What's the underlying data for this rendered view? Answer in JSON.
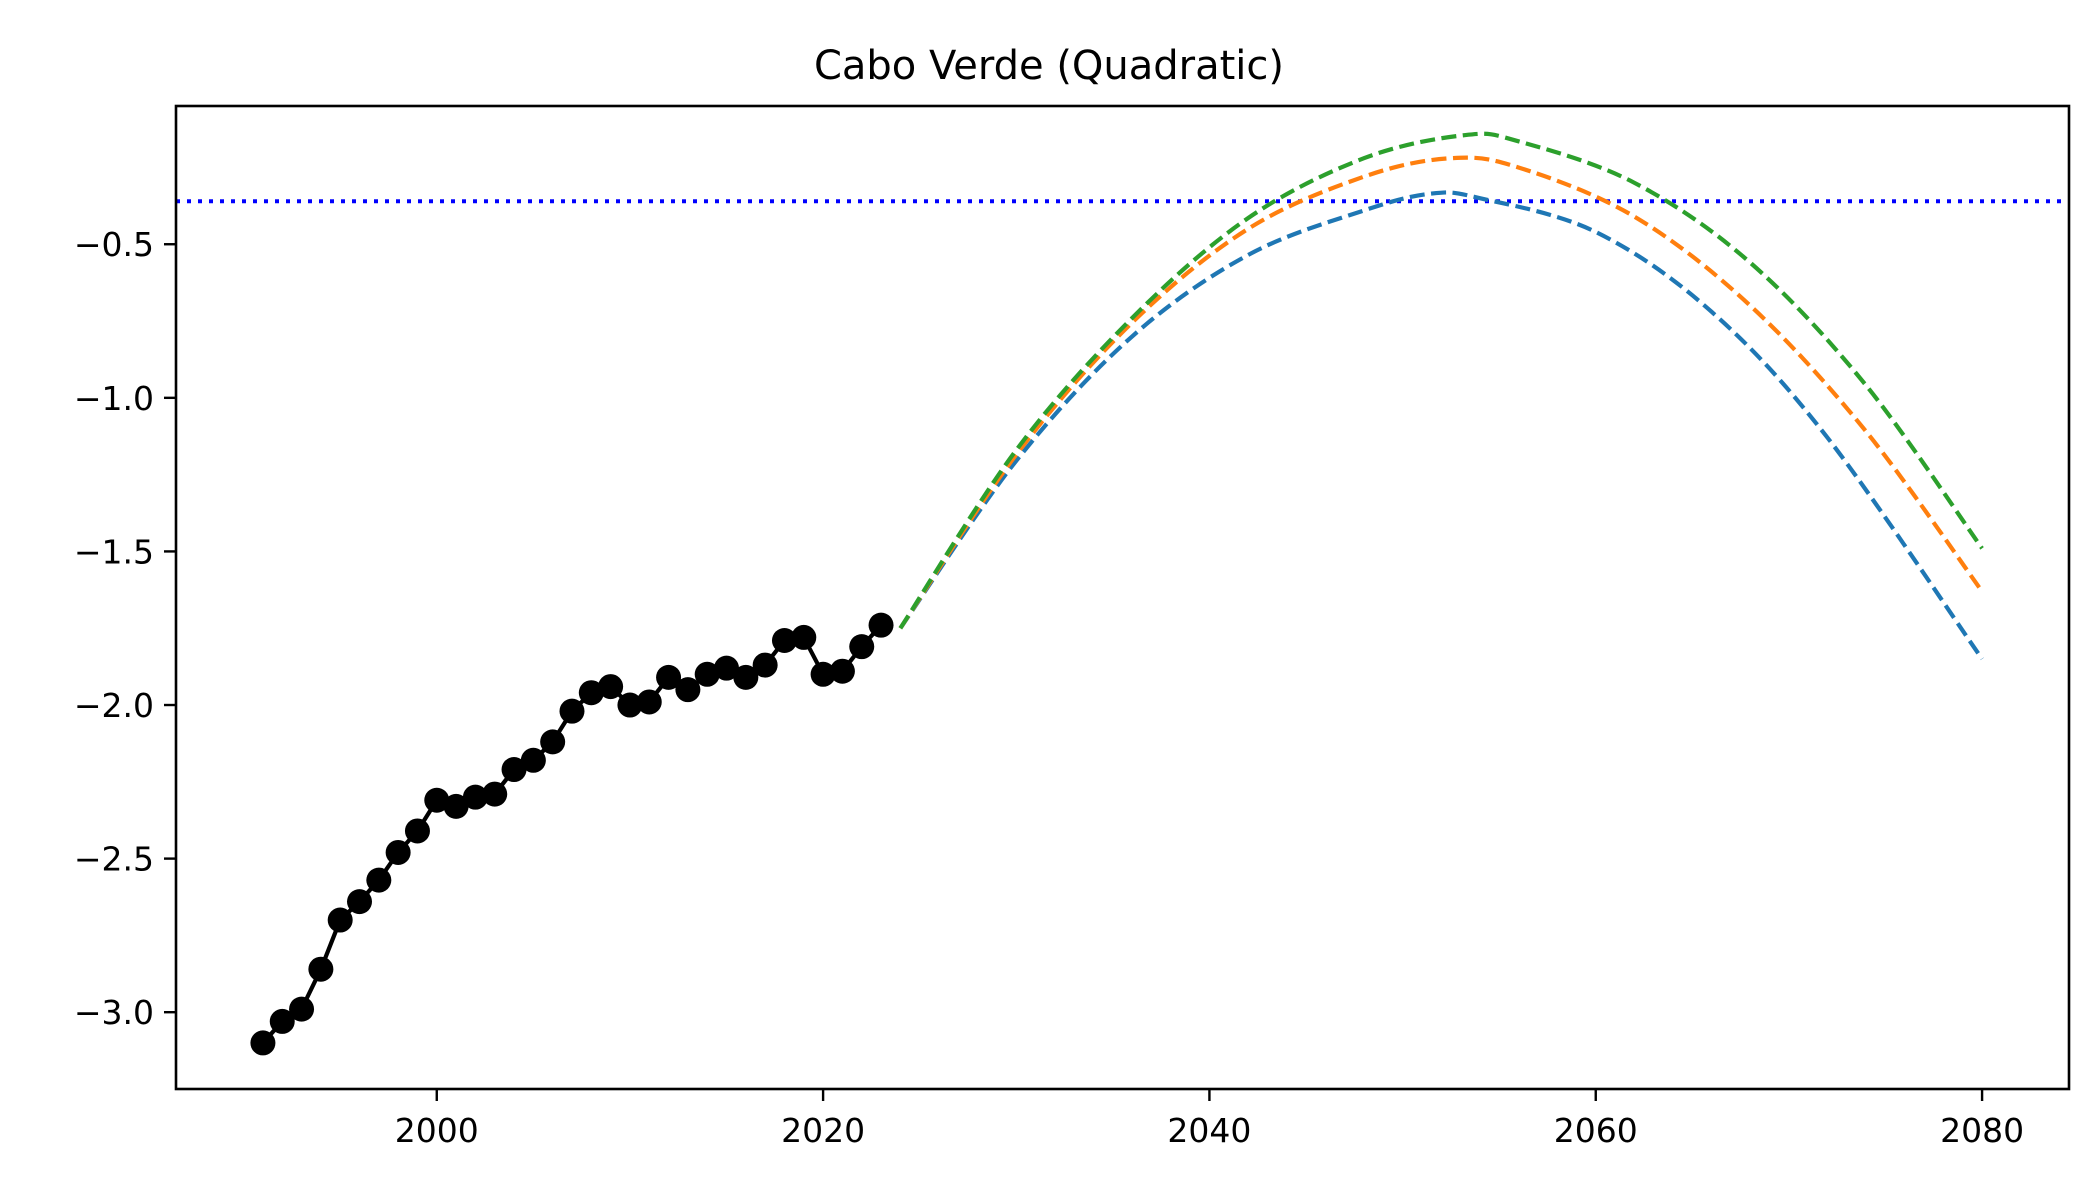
{
  "chart_data": {
    "type": "line",
    "title": "Cabo Verde (Quadratic)",
    "xlabel": "",
    "ylabel": "",
    "xlim": [
      1986.5,
      2084.5
    ],
    "ylim": [
      -3.25,
      -0.05
    ],
    "x_ticks": [
      2000,
      2020,
      2040,
      2060,
      2080
    ],
    "x_tick_labels": [
      "2000",
      "2020",
      "2040",
      "2060",
      "2080"
    ],
    "y_ticks": [
      -3.0,
      -2.5,
      -2.0,
      -1.5,
      -1.0,
      -0.5
    ],
    "y_tick_labels": [
      "−3.0",
      "−2.5",
      "−2.0",
      "−1.5",
      "−1.0",
      "−0.5"
    ],
    "grid": false,
    "legend": "none",
    "reference_line": {
      "y": -0.36,
      "color": "#0000ff",
      "style": "dotted"
    },
    "observed": {
      "color": "#000000",
      "marker": "circle",
      "x": [
        1991,
        1992,
        1993,
        1994,
        1995,
        1996,
        1997,
        1998,
        1999,
        2000,
        2001,
        2002,
        2003,
        2004,
        2005,
        2006,
        2007,
        2008,
        2009,
        2010,
        2011,
        2012,
        2013,
        2014,
        2015,
        2016,
        2017,
        2018,
        2019,
        2020,
        2021,
        2022,
        2023
      ],
      "y": [
        -3.1,
        -3.03,
        -2.99,
        -2.86,
        -2.7,
        -2.64,
        -2.57,
        -2.48,
        -2.41,
        -2.31,
        -2.33,
        -2.3,
        -2.29,
        -2.21,
        -2.18,
        -2.12,
        -2.02,
        -1.96,
        -1.94,
        -2.0,
        -1.99,
        -1.91,
        -1.95,
        -1.9,
        -1.88,
        -1.91,
        -1.87,
        -1.79,
        -1.78,
        -1.9,
        -1.89,
        -1.81,
        -1.74
      ]
    },
    "series": [
      {
        "color": "#1f77b4",
        "style": "dashed",
        "x": [
          2024,
          2030,
          2036,
          2042,
          2048,
          2051.5,
          2054,
          2060,
          2066,
          2072,
          2080
        ],
        "y": [
          -1.75,
          -1.205,
          -0.8,
          -0.535,
          -0.39,
          -0.335,
          -0.35,
          -0.46,
          -0.72,
          -1.13,
          -1.85
        ]
      },
      {
        "color": "#ff7f0e",
        "style": "dashed",
        "x": [
          2024,
          2030,
          2036,
          2042,
          2048,
          2052.5,
          2056,
          2062,
          2068,
          2074,
          2080
        ],
        "y": [
          -1.75,
          -1.185,
          -0.755,
          -0.45,
          -0.28,
          -0.22,
          -0.25,
          -0.41,
          -0.7,
          -1.11,
          -1.63
        ]
      },
      {
        "color": "#2ca02c",
        "style": "dashed",
        "x": [
          2024,
          2030,
          2036,
          2042,
          2048,
          2053.2,
          2056,
          2062,
          2068,
          2074,
          2080
        ],
        "y": [
          -1.75,
          -1.17,
          -0.74,
          -0.415,
          -0.22,
          -0.145,
          -0.165,
          -0.3,
          -0.56,
          -0.96,
          -1.49
        ]
      }
    ]
  }
}
